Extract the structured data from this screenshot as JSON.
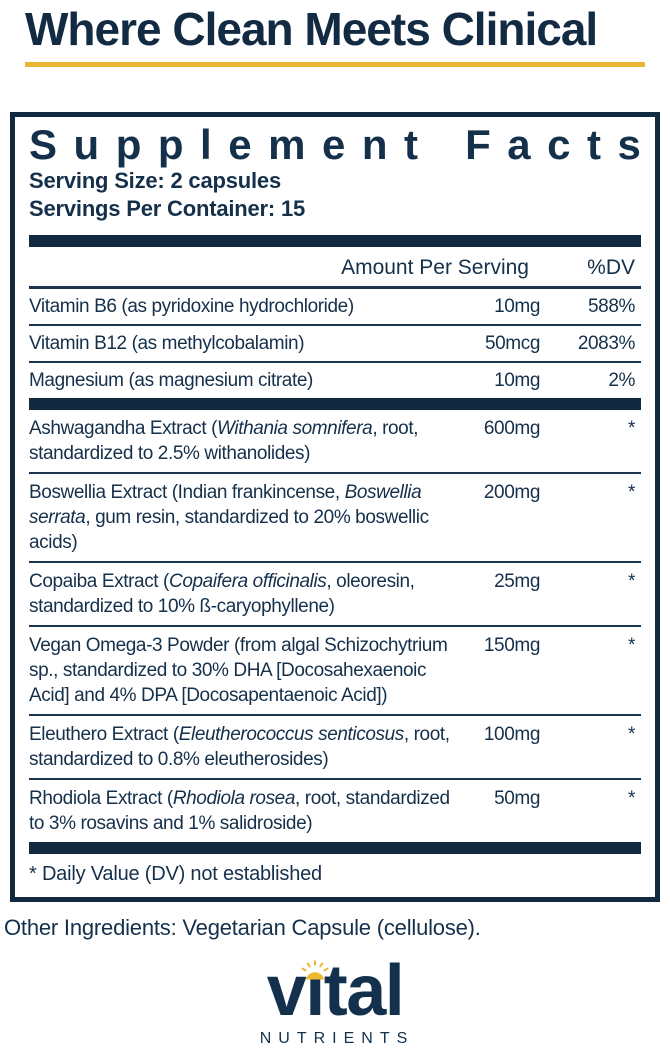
{
  "colors": {
    "navy_text": "#15304b",
    "dark_navy": "#122a40",
    "gold": "#e9b634"
  },
  "header": {
    "title": "Where Clean Meets Clinical"
  },
  "supplement_facts": {
    "title": "Supplement Facts",
    "serving_size": "Serving Size: 2 capsules",
    "servings_per_container": "Servings Per Container: 15",
    "columns": {
      "amount_header": "Amount Per Serving",
      "dv_header": "%DV"
    },
    "vitamin_rows": [
      {
        "name_parts": [
          {
            "text": "Vitamin B6 (as pyridoxine hydrochloride)"
          }
        ],
        "amount": "10mg",
        "dv": "588%"
      },
      {
        "name_parts": [
          {
            "text": "Vitamin B12 (as methylcobalamin)"
          }
        ],
        "amount": "50mcg",
        "dv": "2083%"
      },
      {
        "name_parts": [
          {
            "text": "Magnesium (as magnesium citrate)"
          }
        ],
        "amount": "10mg",
        "dv": "2%"
      }
    ],
    "herbal_rows": [
      {
        "name_parts": [
          {
            "text": "Ashwagandha Extract ("
          },
          {
            "text": "Withania somnifera",
            "italic": true
          },
          {
            "text": ", root, standardized to 2.5% withanolides)"
          }
        ],
        "amount": "600mg",
        "dv": "*"
      },
      {
        "name_parts": [
          {
            "text": "Boswellia Extract (Indian frankincense, "
          },
          {
            "text": "Boswellia serrata",
            "italic": true
          },
          {
            "text": ", gum resin, standardized to 20% boswellic acids)"
          }
        ],
        "amount": "200mg",
        "dv": "*"
      },
      {
        "name_parts": [
          {
            "text": "Copaiba Extract ("
          },
          {
            "text": "Copaifera officinalis",
            "italic": true
          },
          {
            "text": ", oleoresin, standardized to 10% ß-caryophyllene)"
          }
        ],
        "amount": "25mg",
        "dv": "*"
      },
      {
        "name_parts": [
          {
            "text": "Vegan Omega-3 Powder (from algal Schizochytrium sp., standardized to 30% DHA [Docosahexaenoic Acid] and 4% DPA [Docosapentaenoic Acid])"
          }
        ],
        "amount": "150mg",
        "dv": "*"
      },
      {
        "name_parts": [
          {
            "text": "Eleuthero Extract ("
          },
          {
            "text": "Eleutherococcus senticosus",
            "italic": true
          },
          {
            "text": ", root, standardized to 0.8% eleutherosides)"
          }
        ],
        "amount": "100mg",
        "dv": "*"
      },
      {
        "name_parts": [
          {
            "text": "Rhodiola Extract ("
          },
          {
            "text": "Rhodiola rosea",
            "italic": true
          },
          {
            "text": ", root, standardized to 3% rosavins and 1% salidroside)"
          }
        ],
        "amount": "50mg",
        "dv": "*"
      }
    ],
    "footnote": "* Daily Value (DV) not established"
  },
  "other_ingredients": "Other Ingredients: Vegetarian Capsule (cellulose).",
  "logo": {
    "wordmark": "vital",
    "subtext": "NUTRIENTS",
    "icon": "sun-icon"
  }
}
